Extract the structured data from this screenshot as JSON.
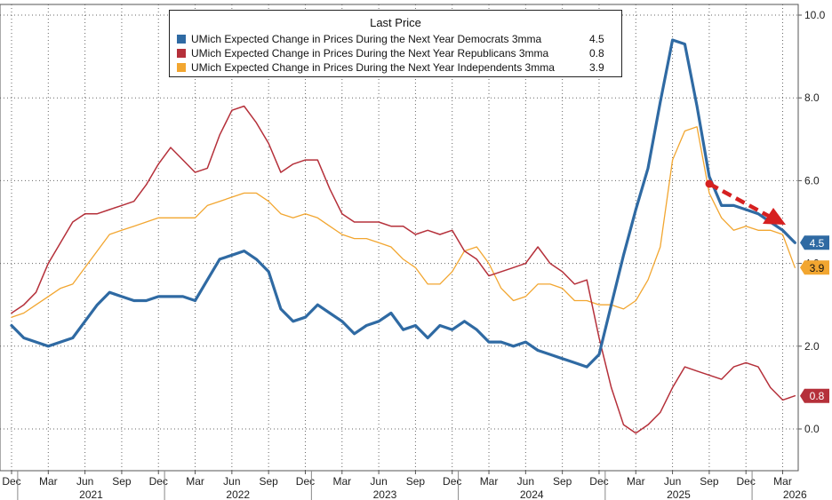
{
  "legend": {
    "title": "Last Price",
    "series": [
      {
        "label": "UMich Expected Change in Prices During the Next Year Democrats 3mma",
        "last": "4.5"
      },
      {
        "label": "UMich Expected Change in Prices During the Next Year Republicans 3mma",
        "last": "0.8"
      },
      {
        "label": "UMich Expected Change in Prices During the Next Year Independents 3mma",
        "last": "3.9"
      }
    ]
  },
  "chart_data": {
    "type": "line",
    "title": "",
    "x_start_month": "2020-12",
    "x_labels": [
      "Dec",
      "Mar",
      "Jun",
      "Sep",
      "Dec",
      "Mar",
      "Jun",
      "Sep",
      "Dec",
      "Mar",
      "Jun",
      "Sep",
      "Dec",
      "Mar",
      "Jun",
      "Sep",
      "Dec",
      "Mar",
      "Jun",
      "Sep",
      "Dec",
      "Mar"
    ],
    "year_labels": [
      "2021",
      "2022",
      "2023",
      "2024",
      "2025",
      "2026"
    ],
    "y_ticks": [
      "0.0",
      "2.0",
      "4.0",
      "6.0",
      "8.0",
      "10.0"
    ],
    "ylim": [
      -1.0,
      10.2
    ],
    "grid": true,
    "legend_position": "top-center",
    "y_axis_side": "right",
    "series": [
      {
        "name": "UMich Expected Change in Prices During the Next Year Democrats 3mma",
        "color": "#2f6aa3",
        "last_label": "4.5",
        "values": [
          2.5,
          2.2,
          2.1,
          2.0,
          2.1,
          2.2,
          2.6,
          3.0,
          3.3,
          3.2,
          3.1,
          3.1,
          3.2,
          3.2,
          3.2,
          3.1,
          3.6,
          4.1,
          4.2,
          4.3,
          4.1,
          3.8,
          2.9,
          2.6,
          2.7,
          3.0,
          2.8,
          2.6,
          2.3,
          2.5,
          2.6,
          2.8,
          2.4,
          2.5,
          2.2,
          2.5,
          2.4,
          2.6,
          2.4,
          2.1,
          2.1,
          2.0,
          2.1,
          1.9,
          1.8,
          1.7,
          1.6,
          1.5,
          1.8,
          3.0,
          4.2,
          5.3,
          6.3,
          7.9,
          9.4,
          9.3,
          7.8,
          6.1,
          5.4,
          5.4,
          5.3,
          5.2,
          5.0,
          4.8,
          4.5
        ]
      },
      {
        "name": "UMich Expected Change in Prices During the Next Year Republicans 3mma",
        "color": "#b5303a",
        "last_label": "0.8",
        "values": [
          2.8,
          3.0,
          3.3,
          4.0,
          4.5,
          5.0,
          5.2,
          5.2,
          5.3,
          5.4,
          5.5,
          5.9,
          6.4,
          6.8,
          6.5,
          6.2,
          6.3,
          7.1,
          7.7,
          7.8,
          7.4,
          6.9,
          6.2,
          6.4,
          6.5,
          6.5,
          5.8,
          5.2,
          5.0,
          5.0,
          5.0,
          4.9,
          4.9,
          4.7,
          4.8,
          4.7,
          4.8,
          4.3,
          4.1,
          3.7,
          3.8,
          3.9,
          4.0,
          4.4,
          4.0,
          3.8,
          3.5,
          3.6,
          2.2,
          1.0,
          0.1,
          -0.1,
          0.1,
          0.4,
          1.0,
          1.5,
          1.4,
          1.3,
          1.2,
          1.5,
          1.6,
          1.5,
          1.0,
          0.7,
          0.8
        ]
      },
      {
        "name": "UMich Expected Change in Prices During the Next Year Independents 3mma",
        "color": "#f2a630",
        "last_label": "3.9",
        "values": [
          2.7,
          2.8,
          3.0,
          3.2,
          3.4,
          3.5,
          3.9,
          4.3,
          4.7,
          4.8,
          4.9,
          5.0,
          5.1,
          5.1,
          5.1,
          5.1,
          5.4,
          5.5,
          5.6,
          5.7,
          5.7,
          5.5,
          5.2,
          5.1,
          5.2,
          5.1,
          4.9,
          4.7,
          4.6,
          4.6,
          4.5,
          4.4,
          4.1,
          3.9,
          3.5,
          3.5,
          3.8,
          4.3,
          4.4,
          4.0,
          3.4,
          3.1,
          3.2,
          3.5,
          3.5,
          3.4,
          3.1,
          3.1,
          3.0,
          3.0,
          2.9,
          3.1,
          3.6,
          4.4,
          6.5,
          7.2,
          7.3,
          5.7,
          5.1,
          4.8,
          4.9,
          4.8,
          4.8,
          4.7,
          3.9
        ]
      }
    ],
    "annotation": "red dashed arrow pointing down-right, Sep 2025 to Mar 2026"
  }
}
